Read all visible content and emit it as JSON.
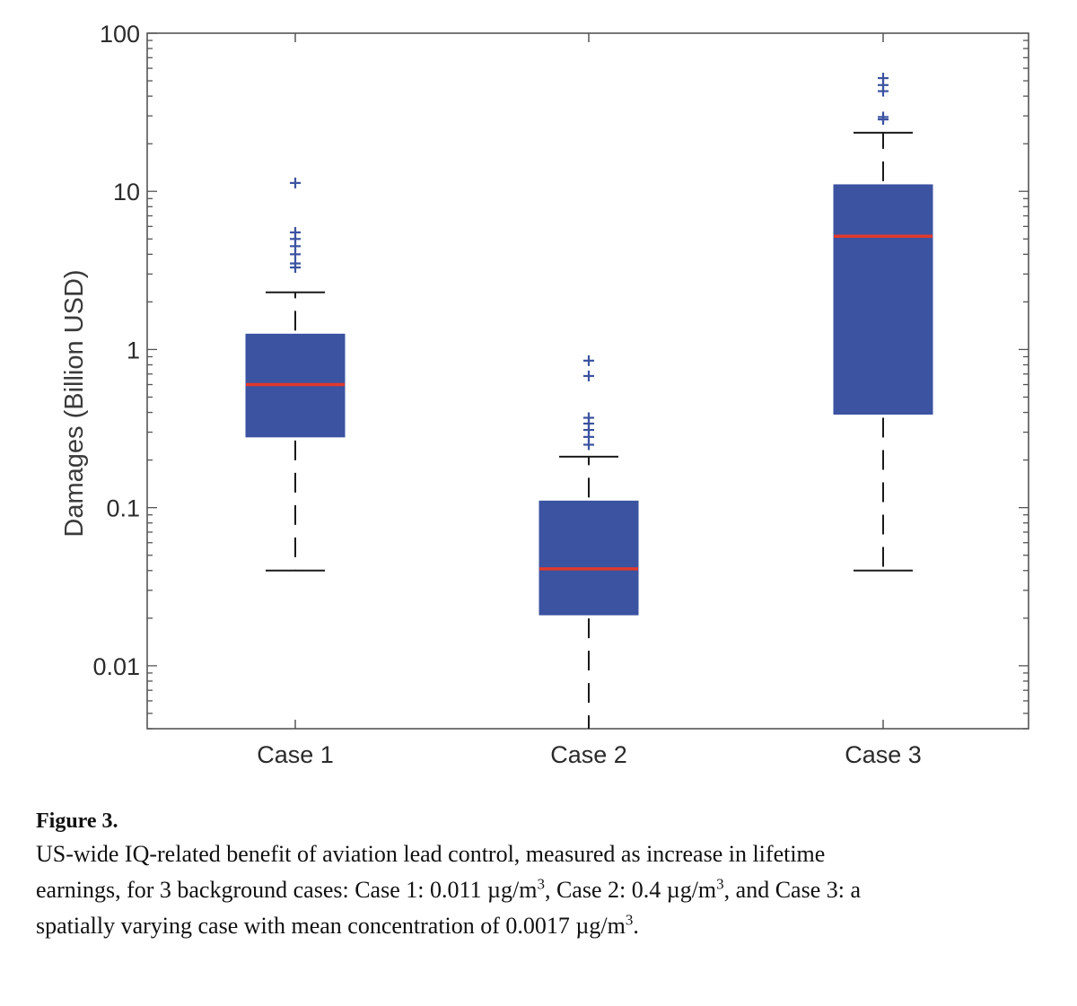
{
  "chart_data": {
    "type": "box",
    "title": "",
    "xlabel": "",
    "ylabel": "Damages (Billion USD)",
    "yscale": "log",
    "ylim": [
      0.004,
      100
    ],
    "yticks": [
      {
        "value": 0.01,
        "label": "0.01"
      },
      {
        "value": 0.1,
        "label": "0.1"
      },
      {
        "value": 1,
        "label": "1"
      },
      {
        "value": 10,
        "label": "10"
      },
      {
        "value": 100,
        "label": "100"
      }
    ],
    "categories": [
      "Case 1",
      "Case 2",
      "Case 3"
    ],
    "series": [
      {
        "name": "Case 1",
        "whisker_low": 0.04,
        "q1": 0.28,
        "median": 0.6,
        "q3": 1.25,
        "whisker_high": 2.3,
        "outliers": [
          3.3,
          3.5,
          4.0,
          4.5,
          5.0,
          5.5,
          11.3
        ]
      },
      {
        "name": "Case 2",
        "whisker_low": 0.004,
        "q1": 0.021,
        "median": 0.041,
        "q3": 0.11,
        "whisker_high": 0.21,
        "outliers": [
          0.25,
          0.28,
          0.31,
          0.34,
          0.37,
          0.68,
          0.85
        ]
      },
      {
        "name": "Case 3",
        "whisker_low": 0.04,
        "q1": 0.39,
        "median": 5.2,
        "q3": 11.0,
        "whisker_high": 23.5,
        "outliers": [
          28.5,
          29.5,
          43,
          47,
          52
        ]
      }
    ],
    "colors": {
      "box": "#3b53a0",
      "median": "#e0392c",
      "whisker": "#1a1a1a",
      "outlier": "#3b53a0",
      "axis": "#555555"
    }
  },
  "caption": {
    "label": "Figure 3.",
    "line1": "US-wide IQ-related benefit of aviation lead control, measured as increase in lifetime",
    "line2_a": "earnings, for 3 background cases: Case 1: 0.011 µg/m",
    "line2_b": ", Case 2: 0.4 µg/m",
    "line2_c": ", and Case 3: a",
    "line3_a": "spatially varying case with mean concentration of 0.0017 µg/m",
    "line3_b": ".",
    "sup": "3"
  }
}
